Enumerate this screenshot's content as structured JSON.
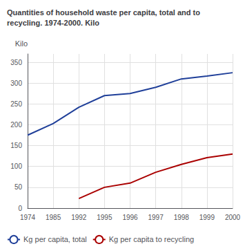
{
  "chart_data": {
    "type": "line",
    "title": "Quantities of household waste per capita, total and to\nrecycling. 1974-2000. Kilo",
    "y_label": "Kilo",
    "categories": [
      "1974",
      "1985",
      "1992",
      "1995",
      "1996",
      "1997",
      "1998",
      "1999",
      "2000"
    ],
    "series": [
      {
        "name": "Kg per capita, total",
        "color": "#1f3f99",
        "values": [
          175,
          203,
          242,
          270,
          275,
          290,
          310,
          317,
          325
        ]
      },
      {
        "name": "Kg per capita to recycling",
        "color": "#aa0000",
        "values": [
          null,
          null,
          23,
          50,
          60,
          86,
          105,
          121,
          130
        ]
      }
    ],
    "ylim": [
      0,
      370
    ],
    "yticks": [
      0,
      50,
      100,
      150,
      200,
      250,
      300,
      350
    ],
    "grid": true,
    "legend": "lower left"
  }
}
